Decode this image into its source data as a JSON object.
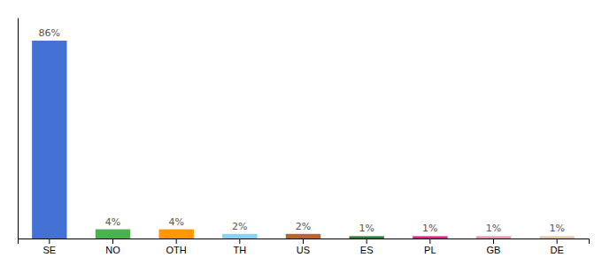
{
  "chart_data": {
    "type": "bar",
    "categories": [
      "SE",
      "NO",
      "OTH",
      "TH",
      "US",
      "ES",
      "PL",
      "GB",
      "DE"
    ],
    "values": [
      86,
      4,
      4,
      2,
      2,
      1,
      1,
      1,
      1
    ],
    "value_labels": [
      "86%",
      "4%",
      "4%",
      "2%",
      "2%",
      "1%",
      "1%",
      "1%",
      "1%"
    ],
    "colors": [
      "#4472d4",
      "#4caf50",
      "#ff9800",
      "#81d4fa",
      "#bf6030",
      "#2e7d32",
      "#e91e8c",
      "#f48fb1",
      "#e8c4a0"
    ],
    "ylim": [
      0,
      96
    ],
    "data_labels": true,
    "tick_labels": "x",
    "grid": false
  }
}
